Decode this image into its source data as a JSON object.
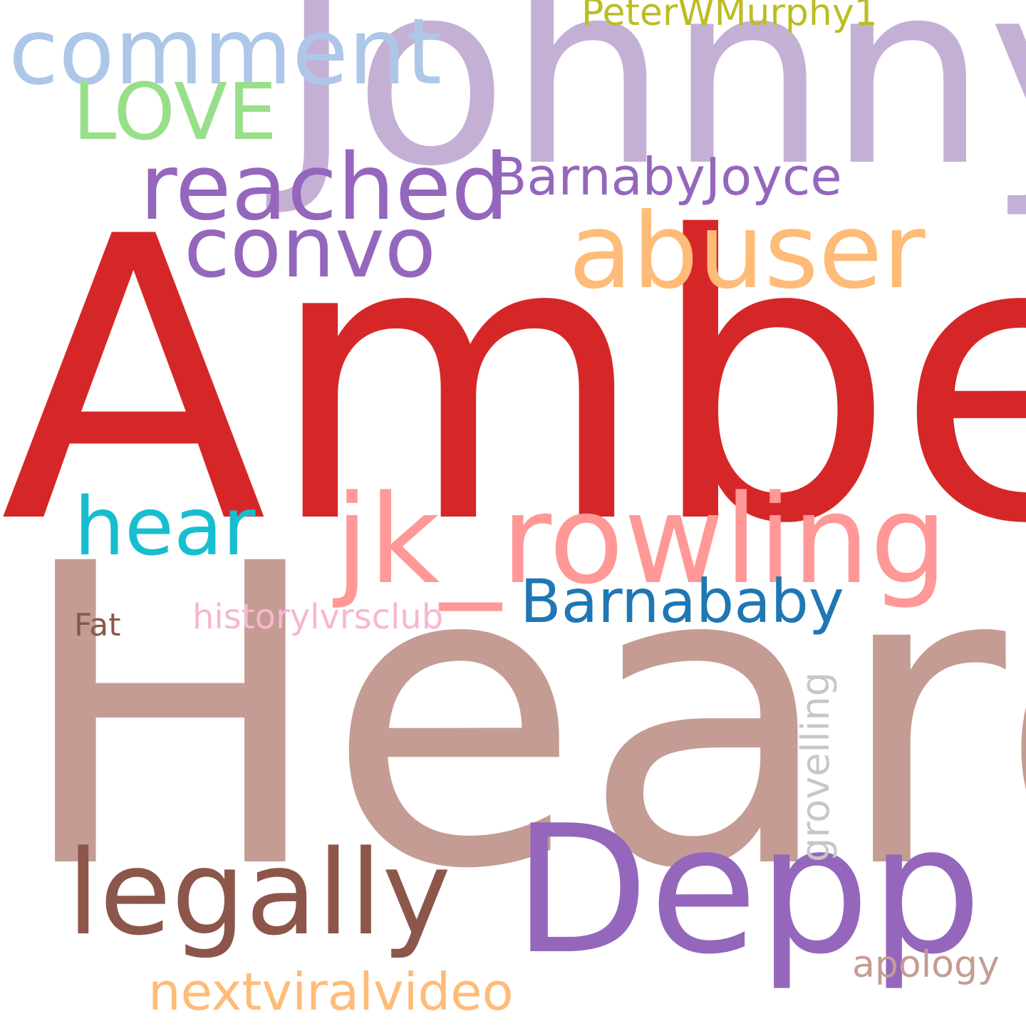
{
  "word_cloud": {
    "background": "#ffffff",
    "words": [
      {
        "key": "johnny",
        "text": "Johnny",
        "color": "#c5b0d5"
      },
      {
        "key": "amber",
        "text": "Amber",
        "color": "#d62728"
      },
      {
        "key": "heard",
        "text": "Heard",
        "color": "#c49c94"
      },
      {
        "key": "depp",
        "text": "Depp",
        "color": "#9467bd"
      },
      {
        "key": "jk",
        "text": "jk_rowling",
        "color": "#ff9896"
      },
      {
        "key": "abuser",
        "text": "abuser",
        "color": "#ffbb78"
      },
      {
        "key": "legally",
        "text": "legally",
        "color": "#8c564b"
      },
      {
        "key": "comment",
        "text": "comment",
        "color": "#aec7e8"
      },
      {
        "key": "reached",
        "text": "reached",
        "color": "#9467bd"
      },
      {
        "key": "convo",
        "text": "convo",
        "color": "#9467bd"
      },
      {
        "key": "love",
        "text": "LOVE",
        "color": "#98df8a"
      },
      {
        "key": "hear",
        "text": "hear",
        "color": "#17becf"
      },
      {
        "key": "barnababy",
        "text": "Barnababy",
        "color": "#1f77b4"
      },
      {
        "key": "barnabyjoyce",
        "text": "BarnabyJoyce",
        "color": "#9467bd"
      },
      {
        "key": "nextviral",
        "text": "nextviralvideo",
        "color": "#ffbb78"
      },
      {
        "key": "apology",
        "text": "apology",
        "color": "#c49c94"
      },
      {
        "key": "peter",
        "text": "PeterWMurphy1",
        "color": "#bcbd22"
      },
      {
        "key": "history",
        "text": "historylvrsclub",
        "color": "#f7b6d2"
      },
      {
        "key": "fat",
        "text": "Fat",
        "color": "#8c564b"
      },
      {
        "key": "grovelling",
        "text": "grovelling",
        "color": "#c7c7c7",
        "orientation": "vertical"
      }
    ]
  }
}
